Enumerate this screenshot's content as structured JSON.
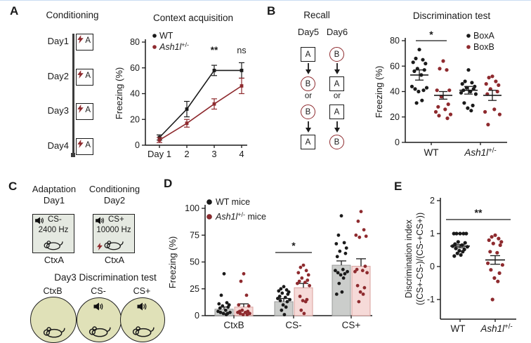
{
  "figure": {
    "colors": {
      "black": "#1a1a1a",
      "dark_red": "#8e2a2e",
      "gray_bar": "#cbcdcb",
      "gray_bar_border": "#9a9a9a",
      "pink_bar": "#f6dad8",
      "pink_bar_border": "#d9a09c",
      "context_box_bg": "#e5e9e1",
      "context_circle_bg": "#e0e1b8"
    },
    "panels": {
      "A": {
        "label": "A",
        "schematic": {
          "title": "Conditioning",
          "days": [
            "Day1",
            "Day2",
            "Day3",
            "Day4"
          ],
          "context_letter": "A",
          "shock_icon": "red-lightning-bolt"
        }
      },
      "B": {
        "label": "B",
        "schematic": {
          "title": "Recall",
          "or_label": "or",
          "columns": [
            {
              "day": "Day5",
              "sequence": [
                {
                  "shape": "square",
                  "letter": "A"
                },
                {
                  "shape": "circle",
                  "letter": "B"
                },
                {
                  "shape": "circle",
                  "letter": "B"
                },
                {
                  "shape": "square",
                  "letter": "A"
                }
              ]
            },
            {
              "day": "Day6",
              "sequence": [
                {
                  "shape": "circle",
                  "letter": "B"
                },
                {
                  "shape": "square",
                  "letter": "A"
                },
                {
                  "shape": "square",
                  "letter": "A"
                },
                {
                  "shape": "circle",
                  "letter": "B"
                }
              ]
            }
          ]
        }
      },
      "C": {
        "label": "C",
        "sessions": [
          {
            "phase": "Adaptation",
            "day": "Day1",
            "cue": "CS-",
            "frequency": "2400 Hz",
            "context": "CtxA",
            "shock": false
          },
          {
            "phase": "Conditioning",
            "day": "Day2",
            "cue": "CS+",
            "frequency": "10000 Hz",
            "context": "CtxA",
            "shock": true
          }
        ],
        "test_title": "Day3 Discrimination test",
        "test_conditions": [
          {
            "label": "CtxB",
            "speaker": false
          },
          {
            "label": "CS-",
            "speaker": true
          },
          {
            "label": "CS+",
            "speaker": true
          }
        ]
      },
      "D": {
        "label": "D"
      },
      "E": {
        "label": "E"
      }
    }
  },
  "chart_data": [
    {
      "id": "context_acquisition",
      "type": "line",
      "title": "Context acquisition",
      "ylabel": "Freezing (%)",
      "ylim": [
        0,
        80
      ],
      "yticks": [
        0,
        20,
        40,
        60,
        80
      ],
      "x_labels": [
        "Day 1",
        "2",
        "3",
        "4"
      ],
      "grid": false,
      "legend_position": "top-left",
      "series": [
        {
          "name": "WT",
          "color": "#1a1a1a",
          "values": [
            6,
            28,
            58,
            58
          ],
          "errors": [
            2,
            6,
            4,
            6
          ]
        },
        {
          "name": "Ash1l+/-",
          "color": "#8e2a2e",
          "values": [
            4,
            17,
            32,
            46
          ],
          "errors": [
            2,
            3,
            4,
            6
          ]
        }
      ],
      "annotations": [
        {
          "x_index": 2,
          "text": "**"
        },
        {
          "x_index": 3,
          "text": "ns"
        }
      ]
    },
    {
      "id": "context_discrimination_test",
      "type": "scatter",
      "title": "Discrimination test",
      "ylabel": "Freezing (%)",
      "ylim": [
        0,
        80
      ],
      "yticks": [
        0,
        20,
        40,
        60,
        80
      ],
      "grid": false,
      "legend_position": "top-right",
      "groups": [
        "WT",
        "Ash1l+/-"
      ],
      "legend": [
        "BoxA",
        "BoxB"
      ],
      "series": [
        {
          "group": "WT",
          "name": "BoxA",
          "color": "#1a1a1a",
          "mean": 53,
          "sem": 4,
          "points": [
            73,
            66,
            65,
            63,
            62,
            58,
            57,
            56,
            53,
            44,
            43,
            42,
            41,
            40,
            33,
            31
          ]
        },
        {
          "group": "WT",
          "name": "BoxB",
          "color": "#8e2a2e",
          "mean": 37,
          "sem": 3,
          "points": [
            64,
            58,
            57,
            41,
            41,
            36,
            30,
            28,
            26,
            24,
            22,
            21,
            19
          ]
        },
        {
          "group": "Ash1l+/-",
          "name": "BoxA",
          "color": "#1a1a1a",
          "mean": 41,
          "sem": 3,
          "points": [
            57,
            48,
            47,
            46,
            44,
            43,
            42,
            41,
            40,
            39,
            38,
            31,
            29,
            27,
            25
          ]
        },
        {
          "group": "Ash1l+/-",
          "name": "BoxB",
          "color": "#8e2a2e",
          "mean": 37,
          "sem": 4,
          "points": [
            52,
            51,
            48,
            46,
            45,
            42,
            40,
            38,
            26,
            24,
            22,
            14
          ]
        }
      ],
      "significance": [
        {
          "text": "*",
          "group": "WT",
          "between": [
            "BoxA",
            "BoxB"
          ],
          "y": 80
        }
      ]
    },
    {
      "id": "tone_discrimination_freezing",
      "type": "bar",
      "title": "",
      "ylabel": "Freezing (%)",
      "ylim": [
        0,
        100
      ],
      "yticks": [
        0,
        25,
        50,
        75,
        100
      ],
      "grid": false,
      "legend_position": "top-left",
      "categories": [
        "CtxB",
        "CS-",
        "CS+"
      ],
      "series": [
        {
          "name": "WT mice",
          "bar_color": "#cbcdcb",
          "bar_border": "#9a9a9a",
          "dot_color": "#1a1a1a",
          "values": [
            6,
            13,
            47
          ],
          "errors": [
            2,
            3,
            4
          ],
          "points": [
            [
              39,
              19,
              12,
              11,
              10,
              9,
              8,
              7,
              5,
              4,
              3,
              3,
              2,
              2,
              1
            ],
            [
              27,
              25,
              24,
              23,
              22,
              21,
              20,
              18,
              17,
              16,
              15,
              14,
              13,
              10,
              8,
              5,
              1
            ],
            [
              93,
              75,
              68,
              67,
              63,
              60,
              58,
              55,
              43,
              42,
              41,
              40,
              39,
              38,
              35,
              30,
              22,
              20
            ]
          ]
        },
        {
          "name": "Ash1l+/- mice",
          "bar_color": "#f6dad8",
          "bar_border": "#d9a09c",
          "dot_color": "#8e2a2e",
          "values": [
            8,
            26,
            46
          ],
          "errors": [
            3,
            4,
            7
          ],
          "points": [
            [
              39,
              32,
              19,
              10,
              9,
              5,
              4,
              4,
              3,
              3,
              2,
              2,
              1,
              1
            ],
            [
              47,
              45,
              42,
              40,
              38,
              35,
              33,
              32,
              31,
              30,
              28,
              18,
              15,
              14,
              13,
              5,
              2
            ],
            [
              97,
              88,
              80,
              75,
              74,
              73,
              46,
              43,
              42,
              41,
              40,
              28,
              26,
              22,
              20,
              13
            ]
          ]
        }
      ],
      "significance": [
        {
          "text": "*",
          "category": "CS-",
          "y": 60
        }
      ]
    },
    {
      "id": "discrimination_index",
      "type": "scatter",
      "title": "",
      "ylabel": [
        "Discrimination index",
        "((CS+-CS-)/(CS-+CS+))"
      ],
      "ylim": [
        -1.6,
        2.1
      ],
      "yticks": [
        -1,
        0,
        1,
        2
      ],
      "grid": false,
      "groups": [
        "WT",
        "Ash1l+/-"
      ],
      "series": [
        {
          "group": "WT",
          "name": "WT",
          "color": "#1a1a1a",
          "mean": 0.62,
          "sem": 0.05,
          "points": [
            1.0,
            1.0,
            1.0,
            1.0,
            1.0,
            0.75,
            0.72,
            0.68,
            0.65,
            0.62,
            0.6,
            0.55,
            0.52,
            0.48,
            0.45,
            0.4,
            0.35,
            0.32
          ]
        },
        {
          "group": "Ash1l+/-",
          "name": "Ash1l+/-",
          "color": "#8e2a2e",
          "mean": 0.2,
          "sem": 0.13,
          "points": [
            0.95,
            0.9,
            0.85,
            0.8,
            0.75,
            0.7,
            0.65,
            0.45,
            0.42,
            0.1,
            0.05,
            -0.1,
            -0.2,
            -0.35,
            -0.45,
            -1.0
          ]
        }
      ],
      "significance": [
        {
          "text": "**",
          "between_groups": [
            "WT",
            "Ash1l+/-"
          ],
          "y": 1.4
        }
      ]
    }
  ]
}
